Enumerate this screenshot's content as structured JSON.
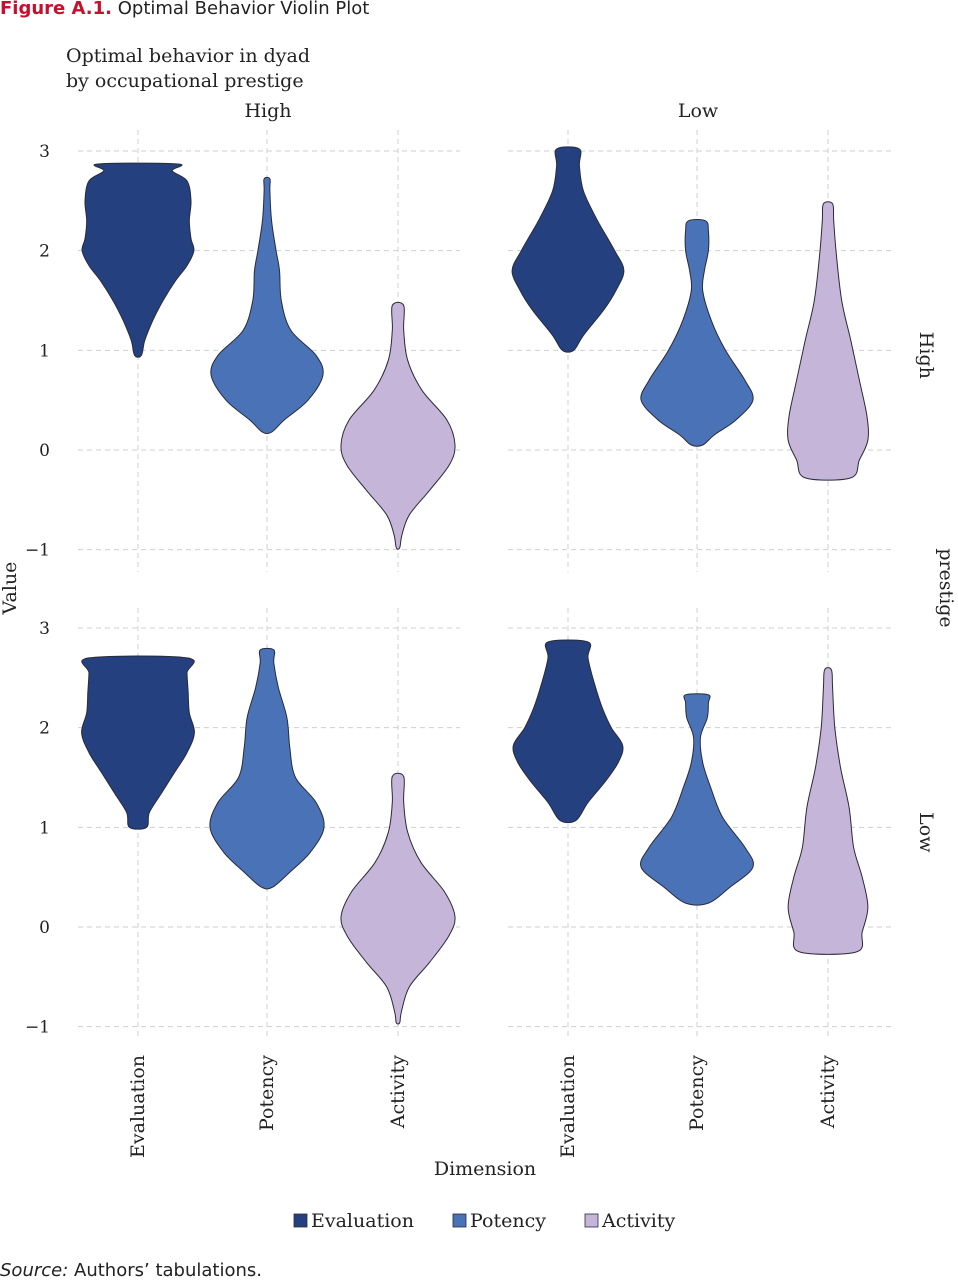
{
  "figure": {
    "number": "Figure A.1.",
    "title": "Optimal Behavior Violin Plot",
    "source_label": "Source:",
    "source_text": "Authors’ tabulations."
  },
  "chart_data": {
    "type": "violin",
    "title": "Optimal behavior in dyad\nby occupational prestige",
    "title_lines": [
      "Optimal behavior in dyad",
      "by occupational prestige"
    ],
    "xlabel": "Dimension",
    "ylabel": "Value",
    "facet_row_title": "prestige",
    "facet_columns": [
      "High",
      "Low"
    ],
    "facet_rows": [
      "High",
      "Low"
    ],
    "categories": [
      "Evaluation",
      "Potency",
      "Activity"
    ],
    "ylim": [
      -1.2,
      3.2
    ],
    "yticks": [
      -1,
      0,
      1,
      2,
      3
    ],
    "ytick_labels": [
      "−1",
      "0",
      "1",
      "2",
      "3"
    ],
    "grid": true,
    "legend_position": "bottom",
    "legend": [
      "Evaluation",
      "Potency",
      "Activity"
    ],
    "colors": {
      "Evaluation": "#24407e",
      "Potency": "#4a72b7",
      "Activity": "#c5b5d8",
      "outline": "#2a2a3a"
    },
    "panels": [
      {
        "row": "High",
        "col": "High",
        "violins": [
          {
            "category": "Evaluation",
            "min": 0.95,
            "max": 2.87,
            "profile": [
              [
                0.95,
                0.06
              ],
              [
                1.1,
                0.12
              ],
              [
                1.3,
                0.26
              ],
              [
                1.5,
                0.44
              ],
              [
                1.7,
                0.66
              ],
              [
                1.85,
                0.86
              ],
              [
                2.0,
                0.98
              ],
              [
                2.12,
                0.93
              ],
              [
                2.3,
                0.9
              ],
              [
                2.5,
                0.93
              ],
              [
                2.7,
                0.86
              ],
              [
                2.8,
                0.6
              ],
              [
                2.87,
                0.7
              ]
            ]
          },
          {
            "category": "Potency",
            "min": 0.18,
            "max": 2.72,
            "profile": [
              [
                0.18,
                0.08
              ],
              [
                0.3,
                0.3
              ],
              [
                0.5,
                0.72
              ],
              [
                0.75,
                0.98
              ],
              [
                0.95,
                0.86
              ],
              [
                1.2,
                0.42
              ],
              [
                1.5,
                0.25
              ],
              [
                1.8,
                0.22
              ],
              [
                2.0,
                0.16
              ],
              [
                2.3,
                0.08
              ],
              [
                2.6,
                0.05
              ],
              [
                2.72,
                0.05
              ]
            ]
          },
          {
            "category": "Activity",
            "min": -0.98,
            "max": 1.45,
            "profile": [
              [
                -0.98,
                0.03
              ],
              [
                -0.85,
                0.07
              ],
              [
                -0.65,
                0.2
              ],
              [
                -0.4,
                0.56
              ],
              [
                -0.15,
                0.9
              ],
              [
                0.05,
                1.0
              ],
              [
                0.3,
                0.86
              ],
              [
                0.6,
                0.42
              ],
              [
                0.9,
                0.17
              ],
              [
                1.2,
                0.1
              ],
              [
                1.45,
                0.1
              ]
            ]
          }
        ]
      },
      {
        "row": "High",
        "col": "Low",
        "violins": [
          {
            "category": "Evaluation",
            "min": 1.0,
            "max": 3.02,
            "profile": [
              [
                1.0,
                0.1
              ],
              [
                1.15,
                0.27
              ],
              [
                1.4,
                0.62
              ],
              [
                1.6,
                0.84
              ],
              [
                1.8,
                0.98
              ],
              [
                2.0,
                0.82
              ],
              [
                2.3,
                0.52
              ],
              [
                2.6,
                0.27
              ],
              [
                2.85,
                0.2
              ],
              [
                3.02,
                0.2
              ]
            ]
          },
          {
            "category": "Potency",
            "min": 0.05,
            "max": 2.3,
            "profile": [
              [
                0.05,
                0.1
              ],
              [
                0.15,
                0.3
              ],
              [
                0.3,
                0.68
              ],
              [
                0.5,
                0.98
              ],
              [
                0.7,
                0.84
              ],
              [
                1.0,
                0.5
              ],
              [
                1.3,
                0.25
              ],
              [
                1.6,
                0.1
              ],
              [
                1.8,
                0.13
              ],
              [
                2.0,
                0.2
              ],
              [
                2.2,
                0.2
              ],
              [
                2.3,
                0.15
              ]
            ]
          },
          {
            "category": "Activity",
            "min": -0.28,
            "max": 2.47,
            "profile": [
              [
                -0.28,
                0.4
              ],
              [
                -0.1,
                0.55
              ],
              [
                0.1,
                0.7
              ],
              [
                0.35,
                0.68
              ],
              [
                0.7,
                0.55
              ],
              [
                1.1,
                0.4
              ],
              [
                1.5,
                0.24
              ],
              [
                2.0,
                0.14
              ],
              [
                2.3,
                0.1
              ],
              [
                2.47,
                0.08
              ]
            ]
          }
        ]
      },
      {
        "row": "Low",
        "col": "High",
        "violins": [
          {
            "category": "Evaluation",
            "min": 1.0,
            "max": 2.7,
            "profile": [
              [
                1.0,
                0.15
              ],
              [
                1.15,
                0.2
              ],
              [
                1.35,
                0.42
              ],
              [
                1.55,
                0.64
              ],
              [
                1.75,
                0.86
              ],
              [
                1.95,
                0.99
              ],
              [
                2.15,
                0.9
              ],
              [
                2.35,
                0.88
              ],
              [
                2.55,
                0.86
              ],
              [
                2.7,
                0.86
              ]
            ]
          },
          {
            "category": "Potency",
            "min": 0.4,
            "max": 2.78,
            "profile": [
              [
                0.4,
                0.1
              ],
              [
                0.55,
                0.4
              ],
              [
                0.75,
                0.76
              ],
              [
                1.0,
                1.0
              ],
              [
                1.25,
                0.86
              ],
              [
                1.5,
                0.5
              ],
              [
                1.8,
                0.4
              ],
              [
                2.1,
                0.35
              ],
              [
                2.4,
                0.2
              ],
              [
                2.65,
                0.12
              ],
              [
                2.78,
                0.12
              ]
            ]
          },
          {
            "category": "Activity",
            "min": -0.96,
            "max": 1.51,
            "profile": [
              [
                -0.96,
                0.03
              ],
              [
                -0.85,
                0.06
              ],
              [
                -0.6,
                0.2
              ],
              [
                -0.35,
                0.56
              ],
              [
                -0.1,
                0.88
              ],
              [
                0.1,
                1.0
              ],
              [
                0.35,
                0.82
              ],
              [
                0.65,
                0.4
              ],
              [
                0.95,
                0.17
              ],
              [
                1.25,
                0.1
              ],
              [
                1.51,
                0.1
              ]
            ]
          }
        ]
      },
      {
        "row": "Low",
        "col": "Low",
        "violins": [
          {
            "category": "Evaluation",
            "min": 1.07,
            "max": 2.86,
            "profile": [
              [
                1.07,
                0.14
              ],
              [
                1.25,
                0.35
              ],
              [
                1.45,
                0.64
              ],
              [
                1.65,
                0.88
              ],
              [
                1.82,
                0.96
              ],
              [
                2.0,
                0.76
              ],
              [
                2.2,
                0.6
              ],
              [
                2.45,
                0.46
              ],
              [
                2.7,
                0.35
              ],
              [
                2.86,
                0.35
              ]
            ]
          },
          {
            "category": "Potency",
            "min": 0.24,
            "max": 2.33,
            "profile": [
              [
                0.24,
                0.2
              ],
              [
                0.4,
                0.58
              ],
              [
                0.6,
                0.98
              ],
              [
                0.8,
                0.84
              ],
              [
                1.1,
                0.45
              ],
              [
                1.4,
                0.24
              ],
              [
                1.65,
                0.1
              ],
              [
                1.9,
                0.06
              ],
              [
                2.1,
                0.18
              ],
              [
                2.25,
                0.2
              ],
              [
                2.33,
                0.2
              ]
            ]
          },
          {
            "category": "Activity",
            "min": -0.25,
            "max": 2.58,
            "profile": [
              [
                -0.25,
                0.5
              ],
              [
                -0.05,
                0.6
              ],
              [
                0.2,
                0.7
              ],
              [
                0.5,
                0.6
              ],
              [
                0.8,
                0.45
              ],
              [
                1.2,
                0.37
              ],
              [
                1.6,
                0.22
              ],
              [
                2.0,
                0.12
              ],
              [
                2.4,
                0.08
              ],
              [
                2.58,
                0.06
              ]
            ]
          }
        ]
      }
    ]
  }
}
